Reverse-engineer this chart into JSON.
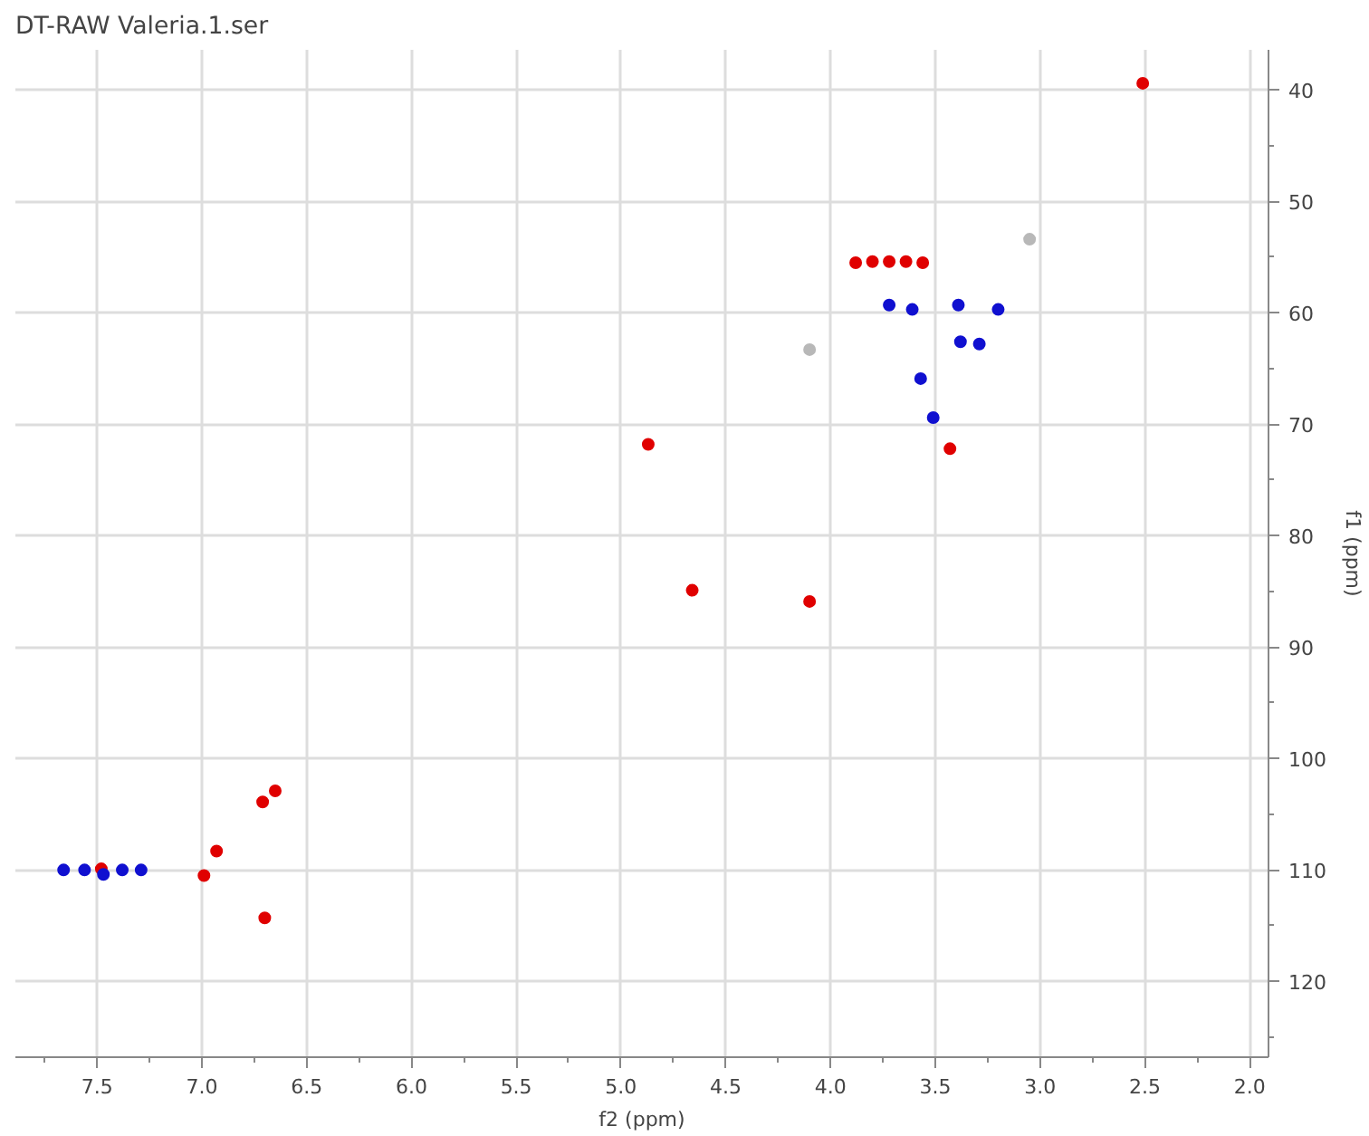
{
  "chart_data": {
    "type": "scatter",
    "title": "DT-RAW Valeria.1.ser",
    "xlabel": "f2 (ppm)",
    "ylabel": "f1 (ppm)",
    "xlim": [
      7.89,
      1.91
    ],
    "ylim": [
      126.8,
      36.4
    ],
    "xticks": [
      {
        "value": 7.75,
        "label": null
      },
      7.5,
      {
        "value": 7.25,
        "label": null
      },
      {
        "value": 7,
        "label": "7.0"
      },
      {
        "value": 6.75,
        "label": null
      },
      6.5,
      {
        "value": 6.25,
        "label": null
      },
      {
        "value": 6,
        "label": "6.0"
      },
      {
        "value": 5.75,
        "label": null
      },
      5.5,
      {
        "value": 5.25,
        "label": null
      },
      {
        "value": 5,
        "label": "5.0"
      },
      {
        "value": 4.75,
        "label": null
      },
      4.5,
      {
        "value": 4.25,
        "label": null
      },
      {
        "value": 4,
        "label": "4.0"
      },
      {
        "value": 3.75,
        "label": null
      },
      3.5,
      {
        "value": 3.25,
        "label": null
      },
      {
        "value": 3,
        "label": "3.0"
      },
      {
        "value": 2.75,
        "label": null
      },
      2.5,
      {
        "value": 2.25,
        "label": null
      },
      {
        "value": 2,
        "label": "2.0"
      }
    ],
    "yticks": [
      40,
      {
        "value": 45,
        "label": null
      },
      50,
      {
        "value": 55,
        "label": null
      },
      60,
      {
        "value": 65,
        "label": null
      },
      70,
      {
        "value": 75,
        "label": null
      },
      80,
      {
        "value": 85,
        "label": null
      },
      90,
      {
        "value": 95,
        "label": null
      },
      100,
      {
        "value": 105,
        "label": null
      },
      110,
      {
        "value": 115,
        "label": null
      },
      120,
      {
        "value": 125,
        "label": null
      }
    ],
    "grid": true,
    "marker": "circle",
    "series": [
      {
        "color": "#e00000",
        "x": [
          2.51,
          3.88,
          3.8,
          3.72,
          3.64,
          3.56,
          3.43,
          4.87,
          4.66,
          4.1,
          7.48,
          6.71,
          6.65,
          6.7,
          6.93,
          6.99
        ],
        "values": [
          39.4,
          55.5,
          55.4,
          55.4,
          55.4,
          55.5,
          72.2,
          71.8,
          84.9,
          85.9,
          109.9,
          103.9,
          102.9,
          114.3,
          108.3,
          110.5
        ]
      },
      {
        "color": "#1010d0",
        "x": [
          3.72,
          3.61,
          3.39,
          3.2,
          3.38,
          3.29,
          3.57,
          3.51,
          7.66,
          7.56,
          7.47,
          7.38,
          7.29
        ],
        "values": [
          59.3,
          59.7,
          59.3,
          59.7,
          62.6,
          62.8,
          65.9,
          69.4,
          110.0,
          110.0,
          110.4,
          110.0,
          110.0
        ]
      },
      {
        "color": "#b8b8b8",
        "x": [
          3.05,
          4.1
        ],
        "values": [
          53.4,
          63.3
        ]
      }
    ]
  }
}
